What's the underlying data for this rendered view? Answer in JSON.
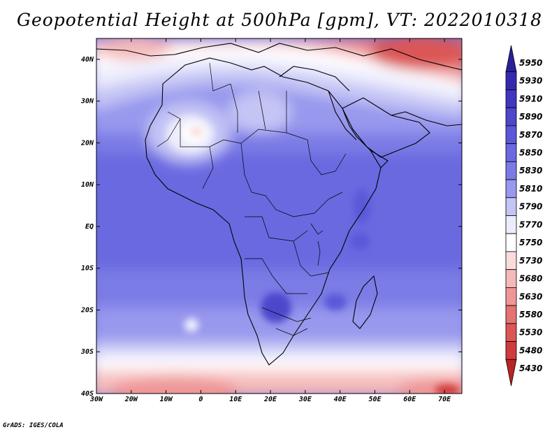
{
  "title": "Geopotential Height at 500hPa [gpm], VT: 2022010318",
  "credit": "GrADS: IGES/COLA",
  "map": {
    "region": "Africa",
    "variable": "Geopotential Height at 500hPa",
    "units": "gpm",
    "valid_time": "2022010318",
    "lon_range": [
      -30,
      75
    ],
    "lat_range": [
      -40,
      45
    ]
  },
  "axes": {
    "x_ticks": [
      {
        "value": -30,
        "label": "30W"
      },
      {
        "value": -20,
        "label": "20W"
      },
      {
        "value": -10,
        "label": "10W"
      },
      {
        "value": 0,
        "label": "0"
      },
      {
        "value": 10,
        "label": "10E"
      },
      {
        "value": 20,
        "label": "20E"
      },
      {
        "value": 30,
        "label": "30E"
      },
      {
        "value": 40,
        "label": "40E"
      },
      {
        "value": 50,
        "label": "50E"
      },
      {
        "value": 60,
        "label": "60E"
      },
      {
        "value": 70,
        "label": "70E"
      }
    ],
    "y_ticks": [
      {
        "value": 40,
        "label": "40N"
      },
      {
        "value": 30,
        "label": "30N"
      },
      {
        "value": 20,
        "label": "20N"
      },
      {
        "value": 10,
        "label": "10N"
      },
      {
        "value": 0,
        "label": "EQ"
      },
      {
        "value": -10,
        "label": "10S"
      },
      {
        "value": -20,
        "label": "20S"
      },
      {
        "value": -30,
        "label": "30S"
      },
      {
        "value": -40,
        "label": "40S"
      }
    ]
  },
  "legend": [
    {
      "label": "5950",
      "color": "#2a1f9c"
    },
    {
      "label": "5930",
      "color": "#3629b0"
    },
    {
      "label": "5910",
      "color": "#4236c0"
    },
    {
      "label": "5890",
      "color": "#4e47cc"
    },
    {
      "label": "5870",
      "color": "#5a58d8"
    },
    {
      "label": "5850",
      "color": "#6a69e0"
    },
    {
      "label": "5830",
      "color": "#7c7be6"
    },
    {
      "label": "5810",
      "color": "#9898ee"
    },
    {
      "label": "5790",
      "color": "#c4c4f5"
    },
    {
      "label": "5770",
      "color": "#ececfd"
    },
    {
      "label": "5750",
      "color": "#ffffff"
    },
    {
      "label": "5730",
      "color": "#fbdcdc"
    },
    {
      "label": "5680",
      "color": "#f5b9b9"
    },
    {
      "label": "5630",
      "color": "#ef9797"
    },
    {
      "label": "5580",
      "color": "#e67373"
    },
    {
      "label": "5530",
      "color": "#dc5656"
    },
    {
      "label": "5480",
      "color": "#cf3c3c"
    },
    {
      "label": "5430",
      "color": "#bb2424"
    }
  ]
}
